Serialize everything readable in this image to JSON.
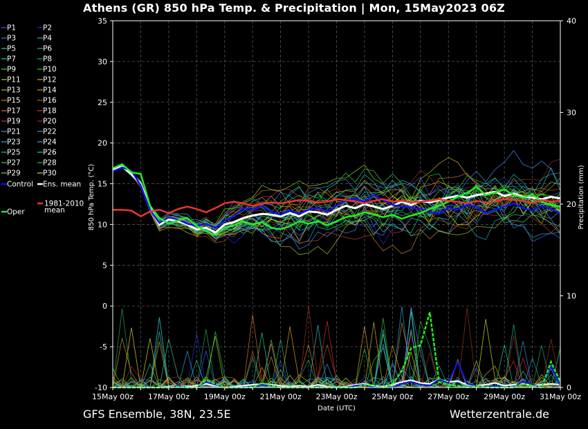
{
  "title": "Athens  (GR)  850 hPa Temp. & Precipitation | Mon, 15May2023 06Z",
  "footer": {
    "left": "GFS Ensemble, 38N, 23.5E",
    "right": "Wetterzentrale.de"
  },
  "chart_data": {
    "type": "line",
    "ylabel_left": "850 hPa Temp. (°C)",
    "ylabel_right": "Precipitation (mm)",
    "xlabel": "Date (UTC)",
    "ylim_left": [
      -10,
      35
    ],
    "ylim_right": [
      0,
      40
    ],
    "y_ticks_left": [
      "-10",
      "-5",
      "0",
      "5",
      "10",
      "15",
      "20",
      "25",
      "30",
      "35"
    ],
    "y_ticks_right": [
      "0",
      "10",
      "20",
      "30",
      "40"
    ],
    "x_ticks": [
      "15May 00z",
      "17May 00z",
      "19May 00z",
      "21May 00z",
      "23May 00z",
      "25May 00z",
      "27May 00z",
      "29May 00z",
      "31May 00z"
    ],
    "x_start": "15May 00z",
    "x_end": "31May 00z",
    "grid": true,
    "legend_placement": "left-outside",
    "legend": [
      {
        "name": "P1",
        "color": "#3a5cff"
      },
      {
        "name": "P2",
        "color": "#2233cc"
      },
      {
        "name": "P3",
        "color": "#4477ee"
      },
      {
        "name": "P4",
        "color": "#22aacc"
      },
      {
        "name": "P5",
        "color": "#2ec4c4"
      },
      {
        "name": "P6",
        "color": "#22bb88"
      },
      {
        "name": "P7",
        "color": "#33cc99"
      },
      {
        "name": "P8",
        "color": "#22aa55"
      },
      {
        "name": "P9",
        "color": "#44dd44"
      },
      {
        "name": "P10",
        "color": "#33cc33"
      },
      {
        "name": "P11",
        "color": "#aacc33"
      },
      {
        "name": "P12",
        "color": "#ccbb33"
      },
      {
        "name": "P13",
        "color": "#ddaa22"
      },
      {
        "name": "P14",
        "color": "#dd9922"
      },
      {
        "name": "P15",
        "color": "#cc8833"
      },
      {
        "name": "P16",
        "color": "#bb6622"
      },
      {
        "name": "P17",
        "color": "#dd7733"
      },
      {
        "name": "P18",
        "color": "#cc4422"
      },
      {
        "name": "P19",
        "color": "#cc3333"
      },
      {
        "name": "P20",
        "color": "#993322"
      },
      {
        "name": "P21",
        "color": "#5588ff"
      },
      {
        "name": "P22",
        "color": "#3399ee"
      },
      {
        "name": "P23",
        "color": "#33aadd"
      },
      {
        "name": "P24",
        "color": "#22bbbb"
      },
      {
        "name": "P25",
        "color": "#22cc99"
      },
      {
        "name": "P26",
        "color": "#22dd88"
      },
      {
        "name": "P27",
        "color": "#44cc66"
      },
      {
        "name": "P28",
        "color": "#33bb44"
      },
      {
        "name": "P29",
        "color": "#88dd22"
      },
      {
        "name": "P30",
        "color": "#dddd22"
      },
      {
        "name": "Control",
        "color": "#1111ee"
      },
      {
        "name": "Ens. mean",
        "color": "#ffffff"
      },
      {
        "name": "Oper",
        "color": "#22ee22"
      },
      {
        "name": "1981-2010 mean",
        "color": "#ee3333"
      }
    ],
    "series": [
      {
        "name": "Ens. mean",
        "color": "#ffffff",
        "temp": [
          16.8,
          17.1,
          16.2,
          15.0,
          12.0,
          10.0,
          10.6,
          10.4,
          10.0,
          9.4,
          9.6,
          9.0,
          10.0,
          10.3,
          10.8,
          11.1,
          11.3,
          11.2,
          11.0,
          11.4,
          11.0,
          11.6,
          11.5,
          11.2,
          11.8,
          12.3,
          12.0,
          12.5,
          12.2,
          11.9,
          12.3,
          12.8,
          12.4,
          12.9,
          12.7,
          13.0,
          13.3,
          13.5,
          13.3,
          13.6,
          13.8,
          14.0,
          13.5,
          13.8,
          13.4,
          13.3,
          13.1,
          13.4,
          13.2
        ]
      },
      {
        "name": "Control",
        "color": "#1111ee",
        "temp": [
          16.5,
          17.0,
          16.6,
          14.8,
          11.8,
          10.2,
          10.9,
          10.6,
          10.1,
          9.8,
          10.1,
          9.6,
          10.5,
          11.0,
          12.0,
          11.8,
          12.2,
          11.6,
          11.2,
          11.7,
          11.3,
          11.8,
          12.0,
          11.6,
          12.3,
          12.9,
          13.2,
          12.8,
          13.6,
          13.0,
          12.4,
          12.2,
          12.1,
          11.9,
          11.5,
          11.3,
          12.1,
          11.8,
          12.4,
          12.2,
          11.4,
          11.8,
          12.2,
          12.6,
          12.0,
          11.7,
          12.3,
          11.9,
          11.4
        ]
      },
      {
        "name": "Oper",
        "color": "#22ee22",
        "temp": [
          16.9,
          17.4,
          16.4,
          16.2,
          12.3,
          10.8,
          10.1,
          10.5,
          10.8,
          9.8,
          9.2,
          8.7,
          9.6,
          9.9,
          10.4,
          10.0,
          10.3,
          9.6,
          9.4,
          9.8,
          10.4,
          10.1,
          10.4,
          9.9,
          10.4,
          10.9,
          11.1,
          11.5,
          11.2,
          10.9,
          11.2,
          10.7,
          11.1,
          11.4,
          11.9,
          12.3,
          12.8,
          13.4,
          13.9,
          14.6,
          13.6,
          13.9,
          14.3,
          13.6,
          13.3,
          13.7,
          12.8,
          12.4,
          12.2
        ]
      },
      {
        "name": "1981-2010 mean",
        "color": "#ee3333",
        "temp": [
          11.8,
          11.8,
          11.7,
          11.0,
          11.6,
          11.8,
          11.4,
          11.9,
          12.2,
          11.9,
          11.5,
          12.0,
          12.6,
          12.8,
          12.6,
          12.3,
          12.6,
          12.7,
          12.6,
          12.8,
          13.0,
          12.9,
          12.7,
          12.8,
          13.1,
          13.0,
          12.8,
          12.6,
          12.9,
          13.1,
          12.8,
          12.9,
          12.7,
          12.8,
          12.9,
          13.1,
          12.9,
          12.8,
          12.6,
          12.9,
          12.7,
          12.8,
          13.1,
          13.0,
          12.9,
          12.6,
          13.0,
          12.8,
          12.9
        ]
      }
    ],
    "precip_series": [
      {
        "name": "Ens. mean",
        "color": "#ffffff",
        "precip": [
          0,
          0,
          0,
          0,
          0,
          0,
          0.1,
          0.2,
          0.1,
          0.2,
          0.4,
          0.2,
          0,
          0.1,
          0.2,
          0.3,
          0.4,
          0.3,
          0.2,
          0.1,
          0.2,
          0.1,
          0.3,
          0.1,
          0,
          0.1,
          0.3,
          0.4,
          0.2,
          0.1,
          0.3,
          0.6,
          0.8,
          0.5,
          0.4,
          0.9,
          0.6,
          0.7,
          0.3,
          0.2,
          0.3,
          0.5,
          0.2,
          0.3,
          0.4,
          0.2,
          0.3,
          0.4,
          0.3
        ]
      },
      {
        "name": "Control",
        "color": "#1111ee",
        "precip": [
          0,
          0,
          0,
          0,
          0,
          0,
          0,
          0.2,
          0,
          0,
          0.6,
          0.3,
          0,
          0,
          0,
          0,
          0.3,
          0.2,
          0,
          0,
          0,
          0,
          0,
          0,
          0,
          0,
          0.2,
          0.3,
          0,
          0,
          0,
          0.4,
          0.6,
          0.3,
          0.2,
          0.9,
          0.5,
          2.8,
          0.4,
          0.2,
          0,
          0.2,
          0,
          0,
          0.7,
          0.3,
          0,
          2.4,
          0.2
        ]
      },
      {
        "name": "Oper",
        "color": "#22ee22",
        "precip": [
          0,
          0,
          0,
          0,
          0,
          0,
          0,
          0.1,
          0,
          0,
          0.8,
          0.4,
          0,
          0,
          0,
          0,
          0.5,
          0.2,
          0,
          0,
          0,
          0,
          0,
          0,
          0,
          0,
          0,
          0.3,
          0.2,
          0,
          0.4,
          1.8,
          4.3,
          4.6,
          8.2,
          0.6,
          0.3,
          0.2,
          0,
          0.2,
          0,
          0,
          0,
          0,
          0.4,
          0.2,
          0,
          2.8,
          0.6
        ]
      }
    ]
  }
}
